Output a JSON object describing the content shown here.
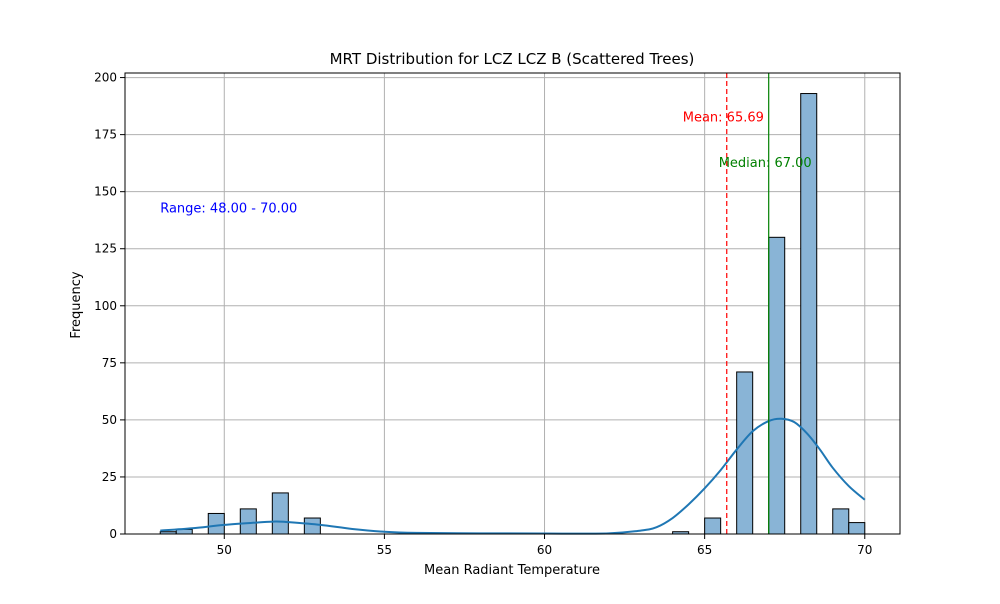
{
  "chart_data": {
    "type": "bar",
    "title": "MRT Distribution for LCZ LCZ B (Scattered Trees)",
    "xlabel": "Mean Radiant Temperature",
    "ylabel": "Frequency",
    "xlim": [
      46.9,
      71.1
    ],
    "ylim": [
      0,
      202
    ],
    "x_ticks": [
      50,
      55,
      60,
      65,
      70
    ],
    "y_ticks": [
      0,
      25,
      50,
      75,
      100,
      125,
      150,
      175,
      200
    ],
    "grid": true,
    "bin_width": 0.5,
    "bins": [
      {
        "x0": 48.0,
        "x1": 48.5,
        "count": 1
      },
      {
        "x0": 48.5,
        "x1": 49.0,
        "count": 2
      },
      {
        "x0": 49.5,
        "x1": 50.0,
        "count": 9
      },
      {
        "x0": 50.5,
        "x1": 51.0,
        "count": 11
      },
      {
        "x0": 51.5,
        "x1": 52.0,
        "count": 18
      },
      {
        "x0": 52.5,
        "x1": 53.0,
        "count": 7
      },
      {
        "x0": 64.0,
        "x1": 64.5,
        "count": 1
      },
      {
        "x0": 65.0,
        "x1": 65.5,
        "count": 7
      },
      {
        "x0": 66.0,
        "x1": 66.5,
        "count": 71
      },
      {
        "x0": 67.0,
        "x1": 67.5,
        "count": 130
      },
      {
        "x0": 68.0,
        "x1": 68.5,
        "count": 193
      },
      {
        "x0": 69.0,
        "x1": 69.5,
        "count": 11
      },
      {
        "x0": 69.5,
        "x1": 70.0,
        "count": 5
      }
    ],
    "kde": {
      "x": [
        48,
        49,
        50,
        51,
        51.6,
        52,
        53,
        54,
        55,
        56,
        58,
        60,
        62,
        63,
        63.5,
        64,
        64.5,
        65,
        65.5,
        66,
        66.5,
        67,
        67.4,
        67.8,
        68.2,
        68.6,
        69,
        69.5,
        70
      ],
      "y": [
        1.5,
        2.5,
        4,
        5,
        5.5,
        5.2,
        4,
        2.2,
        1,
        0.5,
        0.3,
        0.2,
        0.3,
        1.5,
        3,
        7,
        13,
        20,
        28,
        37,
        45,
        49.5,
        50.5,
        49,
        44,
        37,
        29,
        21,
        15
      ]
    },
    "mean": 65.69,
    "median": 67.0,
    "annotations": {
      "mean_label": "Mean: 65.69",
      "median_label": "Median: 67.00",
      "range_label": "Range: 48.00 - 70.00"
    },
    "colors": {
      "bar_fill": "#89b4d6",
      "bar_edge": "#000000",
      "kde_line": "#1f77b4",
      "mean_line": "#ff0000",
      "median_line": "#008000",
      "range_text": "#0000ff",
      "grid": "#b0b0b0"
    }
  }
}
